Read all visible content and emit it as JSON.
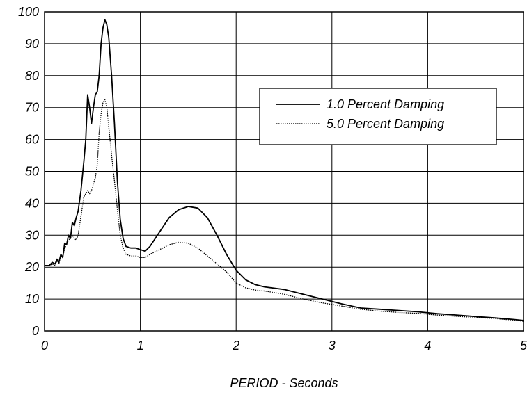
{
  "chart_data": {
    "type": "line",
    "title": "",
    "xlabel": "PERIOD - Seconds",
    "ylabel": "",
    "xlim": [
      0,
      5
    ],
    "ylim": [
      0,
      100
    ],
    "x_ticks": [
      0,
      1,
      2,
      3,
      4,
      5
    ],
    "y_ticks": [
      0,
      10,
      20,
      30,
      40,
      50,
      60,
      70,
      80,
      90,
      100
    ],
    "x_tick_labels": [
      "0",
      "1",
      "2",
      "3",
      "4",
      "5"
    ],
    "y_tick_labels": [
      "0",
      "10",
      "20",
      "30",
      "40",
      "50",
      "60",
      "70",
      "80",
      "90",
      "100"
    ],
    "grid": true,
    "legend_position": "top-right",
    "series": [
      {
        "name": "1.0 Percent Damping",
        "style": "solid",
        "color": "#000000",
        "points": [
          [
            0.0,
            20.5
          ],
          [
            0.05,
            20.5
          ],
          [
            0.08,
            21.5
          ],
          [
            0.11,
            21.0
          ],
          [
            0.13,
            22.5
          ],
          [
            0.15,
            21.5
          ],
          [
            0.17,
            24.0
          ],
          [
            0.19,
            23.0
          ],
          [
            0.21,
            27.5
          ],
          [
            0.23,
            27.0
          ],
          [
            0.25,
            30.0
          ],
          [
            0.27,
            29.0
          ],
          [
            0.29,
            34.0
          ],
          [
            0.31,
            33.0
          ],
          [
            0.33,
            35.5
          ],
          [
            0.35,
            37.5
          ],
          [
            0.38,
            44.0
          ],
          [
            0.41,
            53.0
          ],
          [
            0.43,
            60.0
          ],
          [
            0.45,
            74.0
          ],
          [
            0.47,
            70.0
          ],
          [
            0.49,
            65.0
          ],
          [
            0.51,
            70.0
          ],
          [
            0.53,
            74.0
          ],
          [
            0.55,
            75.0
          ],
          [
            0.57,
            80.0
          ],
          [
            0.59,
            90.0
          ],
          [
            0.61,
            95.0
          ],
          [
            0.63,
            97.5
          ],
          [
            0.65,
            96.0
          ],
          [
            0.67,
            92.0
          ],
          [
            0.7,
            80.0
          ],
          [
            0.73,
            65.0
          ],
          [
            0.76,
            47.0
          ],
          [
            0.79,
            35.0
          ],
          [
            0.82,
            29.0
          ],
          [
            0.85,
            26.5
          ],
          [
            0.9,
            26.0
          ],
          [
            0.95,
            26.0
          ],
          [
            1.0,
            25.5
          ],
          [
            1.05,
            25.0
          ],
          [
            1.1,
            26.5
          ],
          [
            1.2,
            31.0
          ],
          [
            1.3,
            35.5
          ],
          [
            1.4,
            38.0
          ],
          [
            1.5,
            39.0
          ],
          [
            1.6,
            38.5
          ],
          [
            1.7,
            35.5
          ],
          [
            1.8,
            30.0
          ],
          [
            1.9,
            24.0
          ],
          [
            2.0,
            19.0
          ],
          [
            2.1,
            16.0
          ],
          [
            2.2,
            14.5
          ],
          [
            2.3,
            13.8
          ],
          [
            2.5,
            13.0
          ],
          [
            2.7,
            11.5
          ],
          [
            2.9,
            10.0
          ],
          [
            3.1,
            8.5
          ],
          [
            3.3,
            7.2
          ],
          [
            3.5,
            6.8
          ],
          [
            3.7,
            6.4
          ],
          [
            3.9,
            6.0
          ],
          [
            4.1,
            5.4
          ],
          [
            4.3,
            5.0
          ],
          [
            4.5,
            4.5
          ],
          [
            4.7,
            4.1
          ],
          [
            4.9,
            3.6
          ],
          [
            5.0,
            3.3
          ]
        ]
      },
      {
        "name": "5.0 Percent Damping",
        "style": "dotted",
        "color": "#000000",
        "points": [
          [
            0.0,
            20.5
          ],
          [
            0.05,
            20.5
          ],
          [
            0.08,
            21.0
          ],
          [
            0.11,
            20.5
          ],
          [
            0.13,
            22.0
          ],
          [
            0.15,
            21.0
          ],
          [
            0.17,
            23.5
          ],
          [
            0.19,
            23.0
          ],
          [
            0.21,
            26.0
          ],
          [
            0.23,
            27.0
          ],
          [
            0.25,
            28.5
          ],
          [
            0.27,
            29.0
          ],
          [
            0.29,
            30.0
          ],
          [
            0.31,
            29.0
          ],
          [
            0.33,
            28.5
          ],
          [
            0.35,
            30.0
          ],
          [
            0.38,
            36.0
          ],
          [
            0.41,
            42.0
          ],
          [
            0.43,
            43.0
          ],
          [
            0.45,
            44.0
          ],
          [
            0.47,
            43.0
          ],
          [
            0.49,
            44.0
          ],
          [
            0.51,
            46.0
          ],
          [
            0.53,
            48.0
          ],
          [
            0.55,
            52.0
          ],
          [
            0.57,
            62.0
          ],
          [
            0.59,
            68.0
          ],
          [
            0.61,
            71.5
          ],
          [
            0.63,
            72.5
          ],
          [
            0.65,
            70.0
          ],
          [
            0.67,
            64.0
          ],
          [
            0.7,
            55.0
          ],
          [
            0.73,
            47.0
          ],
          [
            0.76,
            38.0
          ],
          [
            0.79,
            30.0
          ],
          [
            0.82,
            26.0
          ],
          [
            0.85,
            24.0
          ],
          [
            0.9,
            23.5
          ],
          [
            0.95,
            23.5
          ],
          [
            1.0,
            23.0
          ],
          [
            1.05,
            23.0
          ],
          [
            1.1,
            24.0
          ],
          [
            1.2,
            25.5
          ],
          [
            1.3,
            27.0
          ],
          [
            1.4,
            27.8
          ],
          [
            1.5,
            27.5
          ],
          [
            1.6,
            26.0
          ],
          [
            1.7,
            23.5
          ],
          [
            1.8,
            21.0
          ],
          [
            1.9,
            18.5
          ],
          [
            2.0,
            15.0
          ],
          [
            2.1,
            13.5
          ],
          [
            2.2,
            12.8
          ],
          [
            2.3,
            12.5
          ],
          [
            2.5,
            11.5
          ],
          [
            2.7,
            10.0
          ],
          [
            2.9,
            8.8
          ],
          [
            3.1,
            7.8
          ],
          [
            3.3,
            6.8
          ],
          [
            3.5,
            6.2
          ],
          [
            3.7,
            5.8
          ],
          [
            3.9,
            5.5
          ],
          [
            4.1,
            5.0
          ],
          [
            4.3,
            4.6
          ],
          [
            4.5,
            4.2
          ],
          [
            4.7,
            3.9
          ],
          [
            4.9,
            3.4
          ],
          [
            5.0,
            3.0
          ]
        ]
      }
    ]
  }
}
